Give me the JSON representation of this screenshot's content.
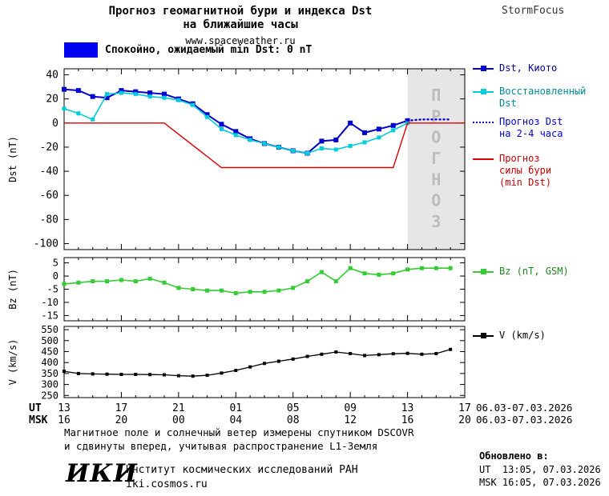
{
  "header": {
    "title_line1": "Прогноз геомагнитной бури и индекса Dst",
    "title_line2": "на ближайшие часы",
    "site": "www.spaceweather.ru",
    "brand": "StormFocus",
    "status": "Спокойно, ожидаемый min Dst: 0 nT",
    "status_color": "#0000ee"
  },
  "chart_data": {
    "type": "line",
    "title": "Прогноз геомагнитной бури и индекса Dst на ближайшие часы",
    "x_axis": {
      "hour_min": 0,
      "hour_max": 28,
      "tick_hours": [
        0,
        4,
        8,
        12,
        16,
        20,
        24,
        28
      ],
      "ut_label": "UT",
      "msk_label": "MSK",
      "ut_ticks": [
        "13",
        "17",
        "21",
        "01",
        "05",
        "09",
        "13",
        "17"
      ],
      "msk_ticks": [
        "16",
        "20",
        "00",
        "04",
        "08",
        "12",
        "16",
        "20"
      ],
      "date_ut": "06.03-07.03.2026",
      "date_msk": "06.03-07.03.2026"
    },
    "panels": [
      {
        "id": "dst",
        "ylabel": "Dst (nT)",
        "ylim": [
          -100,
          40
        ],
        "yticks": [
          40,
          20,
          0,
          -20,
          -40,
          -60,
          -80,
          -100
        ],
        "forecast_band": {
          "start_hour": 24,
          "end_hour": 28,
          "label": "ПРОГНОЗ",
          "fill": "#e6e6e6",
          "text_color": "#bcbcbc"
        },
        "series": [
          {
            "id": "dst-kyoto",
            "name": "Dst, Киото",
            "color": "#0000cc",
            "style": "solid",
            "marker": "square",
            "marker_size": 6,
            "width": 2,
            "points": [
              [
                0,
                28
              ],
              [
                1,
                27
              ],
              [
                2,
                22
              ],
              [
                3,
                21
              ],
              [
                4,
                27
              ],
              [
                5,
                26
              ],
              [
                6,
                25
              ],
              [
                7,
                24
              ],
              [
                8,
                20
              ],
              [
                9,
                16
              ],
              [
                10,
                7
              ],
              [
                11,
                -1
              ],
              [
                12,
                -7
              ],
              [
                13,
                -13
              ],
              [
                14,
                -17
              ],
              [
                15,
                -20
              ],
              [
                16,
                -23
              ],
              [
                17,
                -25
              ],
              [
                18,
                -15
              ],
              [
                19,
                -14
              ],
              [
                20,
                0
              ],
              [
                21,
                -8
              ],
              [
                22,
                -5
              ],
              [
                23,
                -2
              ],
              [
                24,
                2
              ]
            ]
          },
          {
            "id": "dst-recovered",
            "name": "Восстановленный Dst",
            "color": "#00ccdd",
            "style": "solid",
            "marker": "square",
            "marker_size": 5,
            "width": 1.6,
            "points": [
              [
                0,
                12
              ],
              [
                1,
                8
              ],
              [
                2,
                3
              ],
              [
                3,
                24
              ],
              [
                4,
                25
              ],
              [
                5,
                24
              ],
              [
                6,
                22
              ],
              [
                7,
                21
              ],
              [
                8,
                19
              ],
              [
                9,
                15
              ],
              [
                10,
                5
              ],
              [
                11,
                -5
              ],
              [
                12,
                -10
              ],
              [
                13,
                -14
              ],
              [
                14,
                -17
              ],
              [
                15,
                -20
              ],
              [
                16,
                -23
              ],
              [
                17,
                -25
              ],
              [
                18,
                -21
              ],
              [
                19,
                -22
              ],
              [
                20,
                -19
              ],
              [
                21,
                -16
              ],
              [
                22,
                -12
              ],
              [
                23,
                -6
              ],
              [
                24,
                0
              ]
            ]
          },
          {
            "id": "dst-forecast",
            "name": "Прогноз Dst на 2-4 часа",
            "color": "#0000cc",
            "style": "dotted",
            "marker": "none",
            "width": 2.4,
            "points": [
              [
                24,
                2
              ],
              [
                25,
                3
              ],
              [
                26,
                3
              ],
              [
                27,
                3
              ]
            ]
          },
          {
            "id": "storm-forecast",
            "name": "Прогноз силы бури (min Dst)",
            "color": "#dd0000",
            "style": "solid",
            "marker": "none",
            "width": 1.4,
            "points": [
              [
                0,
                0
              ],
              [
                7,
                0
              ],
              [
                11,
                -37
              ],
              [
                23,
                -37
              ],
              [
                24,
                0
              ],
              [
                28,
                0
              ]
            ]
          }
        ]
      },
      {
        "id": "bz",
        "ylabel": "Bz (nT)",
        "ylim": [
          -15,
          5
        ],
        "yticks": [
          5,
          0,
          -5,
          -10,
          -15
        ],
        "series": [
          {
            "id": "bz",
            "name": "Bz (nT, GSM)",
            "color": "#33cc33",
            "style": "solid",
            "marker": "square",
            "marker_size": 5,
            "width": 1.6,
            "points": [
              [
                0,
                -3
              ],
              [
                1,
                -2.5
              ],
              [
                2,
                -2
              ],
              [
                3,
                -2
              ],
              [
                4,
                -1.5
              ],
              [
                5,
                -2
              ],
              [
                6,
                -1
              ],
              [
                7,
                -2.5
              ],
              [
                8,
                -4.5
              ],
              [
                9,
                -5
              ],
              [
                10,
                -5.5
              ],
              [
                11,
                -5.5
              ],
              [
                12,
                -6.5
              ],
              [
                13,
                -6
              ],
              [
                14,
                -6
              ],
              [
                15,
                -5.5
              ],
              [
                16,
                -4.5
              ],
              [
                17,
                -2
              ],
              [
                18,
                1.5
              ],
              [
                19,
                -2
              ],
              [
                20,
                3
              ],
              [
                21,
                1
              ],
              [
                22,
                0.5
              ],
              [
                23,
                1
              ],
              [
                24,
                2.5
              ],
              [
                25,
                3
              ],
              [
                26,
                3
              ],
              [
                27,
                3
              ]
            ]
          }
        ]
      },
      {
        "id": "v",
        "ylabel": "V (km/s)",
        "ylim": [
          250,
          550
        ],
        "yticks": [
          550,
          500,
          450,
          400,
          350,
          300,
          250
        ],
        "series": [
          {
            "id": "v",
            "name": "V (km/s)",
            "color": "#000000",
            "style": "solid",
            "marker": "square",
            "marker_size": 4,
            "width": 1.3,
            "points": [
              [
                0,
                360
              ],
              [
                1,
                350
              ],
              [
                2,
                348
              ],
              [
                3,
                347
              ],
              [
                4,
                346
              ],
              [
                5,
                346
              ],
              [
                6,
                345
              ],
              [
                7,
                344
              ],
              [
                8,
                340
              ],
              [
                9,
                338
              ],
              [
                10,
                342
              ],
              [
                11,
                352
              ],
              [
                12,
                364
              ],
              [
                13,
                380
              ],
              [
                14,
                396
              ],
              [
                15,
                406
              ],
              [
                16,
                416
              ],
              [
                17,
                428
              ],
              [
                18,
                438
              ],
              [
                19,
                448
              ],
              [
                20,
                441
              ],
              [
                21,
                432
              ],
              [
                22,
                436
              ],
              [
                23,
                440
              ],
              [
                24,
                442
              ],
              [
                25,
                438
              ],
              [
                26,
                441
              ],
              [
                27,
                460
              ]
            ]
          }
        ]
      }
    ]
  },
  "legend": {
    "groups": [
      {
        "panel": "dst",
        "entries": [
          {
            "label": "Dst, Киото",
            "color": "#0000cc",
            "text_color": "#000099",
            "style": "solid",
            "marker": true
          },
          {
            "label": "Восстановленный\nDst",
            "color": "#00ccdd",
            "text_color": "#008899",
            "style": "solid",
            "marker": true
          },
          {
            "label": "Прогноз Dst\nна 2-4 часа",
            "color": "#0000cc",
            "text_color": "#0000cc",
            "style": "dotted",
            "marker": false
          },
          {
            "label": "Прогноз\nсилы бури\n(min Dst)",
            "color": "#dd0000",
            "text_color": "#cc0000",
            "style": "solid",
            "marker": false
          }
        ]
      },
      {
        "panel": "bz",
        "entries": [
          {
            "label": "Bz (nT, GSM)",
            "color": "#33cc33",
            "text_color": "#228822",
            "style": "solid",
            "marker": true
          }
        ]
      },
      {
        "panel": "v",
        "entries": [
          {
            "label": "V (km/s)",
            "color": "#000000",
            "text_color": "#000000",
            "style": "solid",
            "marker": true
          }
        ]
      }
    ]
  },
  "footer": {
    "line1": "Магнитное поле и солнечный ветер измерены спутником DSCOVR",
    "line2": "и сдвинуты вперед, учитывая распространение L1-Земля",
    "updated_label": "Обновлено в:",
    "updated_ut": "UT  13:05, 07.03.2026",
    "updated_msk": "MSK 16:05, 07.03.2026",
    "logo": "ИКИ",
    "institute": "Институт космических исследований РАН",
    "institute_url": "iki.cosmos.ru"
  }
}
